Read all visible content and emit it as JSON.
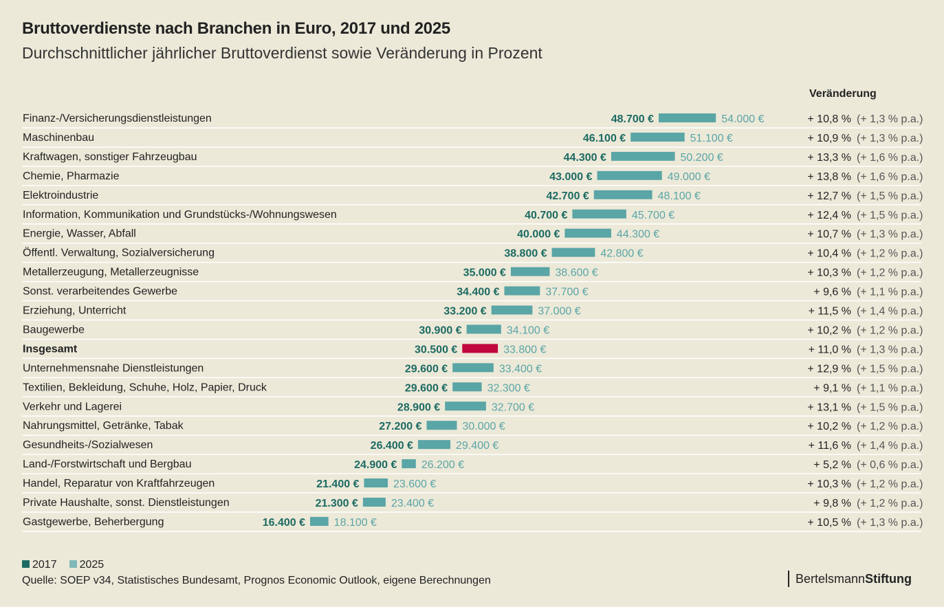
{
  "chart_data": {
    "type": "bar",
    "title": "Bruttoverdienste nach Branchen in Euro, 2017 und 2025",
    "subtitle": "Durchschnittlicher jährlicher Bruttoverdienst sowie Veränderung in Prozent",
    "change_header": "Veränderung",
    "legend": [
      "2017",
      "2025"
    ],
    "colors": {
      "c2017": "#1c6a62",
      "c2025": "#5aa5a5",
      "highlight": "#c0073f",
      "bg": "#ece9d9"
    },
    "rows": [
      {
        "label": "Finanz-/Versicherungsdienstleistungen",
        "v2017": 48700,
        "v2025": 54000,
        "t2017": "48.700 €",
        "t2025": "54.000 €",
        "pct": "+ 10,8 %",
        "pa": "(+ 1,3 % p.a.)"
      },
      {
        "label": "Maschinenbau",
        "v2017": 46100,
        "v2025": 51100,
        "t2017": "46.100 €",
        "t2025": "51.100 €",
        "pct": "+ 10,9 %",
        "pa": "(+ 1,3 % p.a.)"
      },
      {
        "label": "Kraftwagen, sonstiger Fahrzeugbau",
        "v2017": 44300,
        "v2025": 50200,
        "t2017": "44.300 €",
        "t2025": "50.200 €",
        "pct": "+ 13,3 %",
        "pa": "(+ 1,6 % p.a.)"
      },
      {
        "label": "Chemie, Pharmazie",
        "v2017": 43000,
        "v2025": 49000,
        "t2017": "43.000 €",
        "t2025": "49.000 €",
        "pct": "+ 13,8 %",
        "pa": "(+ 1,6 % p.a.)"
      },
      {
        "label": "Elektroindustrie",
        "v2017": 42700,
        "v2025": 48100,
        "t2017": "42.700 €",
        "t2025": "48.100 €",
        "pct": "+ 12,7 %",
        "pa": "(+ 1,5 % p.a.)"
      },
      {
        "label": "Information, Kommunikation und Grundstücks-/Wohnungswesen",
        "v2017": 40700,
        "v2025": 45700,
        "t2017": "40.700 €",
        "t2025": "45.700 €",
        "pct": "+ 12,4 %",
        "pa": "(+ 1,5 % p.a.)"
      },
      {
        "label": "Energie, Wasser, Abfall",
        "v2017": 40000,
        "v2025": 44300,
        "t2017": "40.000 €",
        "t2025": "44.300 €",
        "pct": "+ 10,7 %",
        "pa": "(+ 1,3 % p.a.)"
      },
      {
        "label": "Öffentl. Verwaltung, Sozialversicherung",
        "v2017": 38800,
        "v2025": 42800,
        "t2017": "38.800 €",
        "t2025": "42.800 €",
        "pct": "+ 10,4 %",
        "pa": "(+ 1,2 % p.a.)"
      },
      {
        "label": "Metallerzeugung, Metallerzeugnisse",
        "v2017": 35000,
        "v2025": 38600,
        "t2017": "35.000 €",
        "t2025": "38.600 €",
        "pct": "+ 10,3 %",
        "pa": "(+ 1,2 % p.a.)"
      },
      {
        "label": "Sonst. verarbeitendes Gewerbe",
        "v2017": 34400,
        "v2025": 37700,
        "t2017": "34.400 €",
        "t2025": "37.700 €",
        "pct": "+ 9,6 %",
        "pa": "(+ 1,1 % p.a.)"
      },
      {
        "label": "Erziehung, Unterricht",
        "v2017": 33200,
        "v2025": 37000,
        "t2017": "33.200 €",
        "t2025": "37.000 €",
        "pct": "+ 11,5 %",
        "pa": "(+ 1,4 % p.a.)"
      },
      {
        "label": "Baugewerbe",
        "v2017": 30900,
        "v2025": 34100,
        "t2017": "30.900 €",
        "t2025": "34.100 €",
        "pct": "+ 10,2 %",
        "pa": "(+ 1,2 % p.a.)"
      },
      {
        "label": "Insgesamt",
        "v2017": 30500,
        "v2025": 33800,
        "t2017": "30.500 €",
        "t2025": "33.800 €",
        "pct": "+ 11,0 %",
        "pa": "(+ 1,3 % p.a.)",
        "highlight": true
      },
      {
        "label": "Unternehmensnahe Dienstleistungen",
        "v2017": 29600,
        "v2025": 33400,
        "t2017": "29.600 €",
        "t2025": "33.400 €",
        "pct": "+ 12,9 %",
        "pa": "(+ 1,5 % p.a.)"
      },
      {
        "label": "Textilien, Bekleidung, Schuhe, Holz, Papier, Druck",
        "v2017": 29600,
        "v2025": 32300,
        "t2017": "29.600 €",
        "t2025": "32.300 €",
        "pct": "+ 9,1 %",
        "pa": "(+ 1,1 % p.a.)"
      },
      {
        "label": "Verkehr und Lagerei",
        "v2017": 28900,
        "v2025": 32700,
        "t2017": "28.900 €",
        "t2025": "32.700 €",
        "pct": "+ 13,1 %",
        "pa": "(+ 1,5 % p.a.)"
      },
      {
        "label": "Nahrungsmittel, Getränke, Tabak",
        "v2017": 27200,
        "v2025": 30000,
        "t2017": "27.200 €",
        "t2025": "30.000 €",
        "pct": "+ 10,2 %",
        "pa": "(+ 1,2 % p.a.)"
      },
      {
        "label": "Gesundheits-/Sozialwesen",
        "v2017": 26400,
        "v2025": 29400,
        "t2017": "26.400 €",
        "t2025": "29.400 €",
        "pct": "+ 11,6 %",
        "pa": "(+ 1,4 % p.a.)"
      },
      {
        "label": "Land-/Forstwirtschaft und Bergbau",
        "v2017": 24900,
        "v2025": 26200,
        "t2017": "24.900 €",
        "t2025": "26.200 €",
        "pct": "+ 5,2 %",
        "pa": "(+ 0,6 % p.a.)"
      },
      {
        "label": "Handel, Reparatur von Kraftfahrzeugen",
        "v2017": 21400,
        "v2025": 23600,
        "t2017": "21.400 €",
        "t2025": "23.600 €",
        "pct": "+ 10,3 %",
        "pa": "(+ 1,2 % p.a.)"
      },
      {
        "label": "Private Haushalte, sonst. Dienstleistungen",
        "v2017": 21300,
        "v2025": 23400,
        "t2017": "21.300 €",
        "t2025": "23.400 €",
        "pct": "+ 9,8 %",
        "pa": "(+ 1,2 % p.a.)"
      },
      {
        "label": "Gastgewerbe, Beherbergung",
        "v2017": 16400,
        "v2025": 18100,
        "t2017": "16.400 €",
        "t2025": "18.100 €",
        "pct": "+ 10,5 %",
        "pa": "(+ 1,3 % p.a.)"
      }
    ],
    "source": "Quelle: SOEP v34, Statistisches Bundesamt, Prognos Economic Outlook, eigene Berechnungen"
  },
  "logo": {
    "part1": "Bertelsmann",
    "part2": "Stiftung"
  }
}
